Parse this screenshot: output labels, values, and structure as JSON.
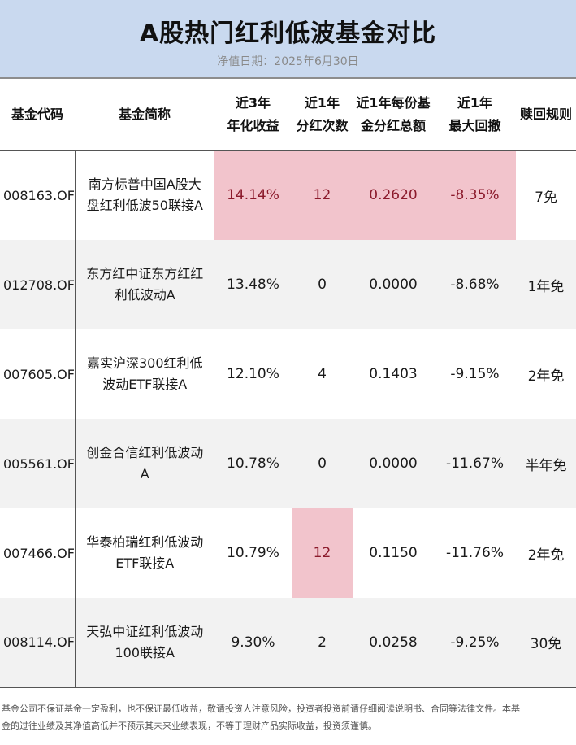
{
  "header": {
    "title": "A股热门红利低波基金对比",
    "subtitle": "净值日期：2025年6月30日"
  },
  "table": {
    "headers": [
      [
        "基金代码"
      ],
      [
        "基金简称"
      ],
      [
        "近3年",
        "年化收益"
      ],
      [
        "近1年",
        "分红次数"
      ],
      [
        "近1年每份基",
        "金分红总额"
      ],
      [
        "近1年",
        "最大回撤"
      ],
      [
        "赎回规则"
      ]
    ],
    "rows": [
      {
        "code": "008163.OF",
        "name": [
          "南方标普中国A股大",
          "盘红利低波50联接A"
        ],
        "ret": "14.14%",
        "div_count": "12",
        "div_total": "0.2620",
        "drawdown": "-8.35%",
        "redeem": "7免"
      },
      {
        "code": "012708.OF",
        "name": [
          "东方红中证东方红红",
          "利低波动A"
        ],
        "ret": "13.48%",
        "div_count": "0",
        "div_total": "0.0000",
        "drawdown": "-8.68%",
        "redeem": "1年免"
      },
      {
        "code": "007605.OF",
        "name": [
          "嘉实沪深300红利低",
          "波动ETF联接A"
        ],
        "ret": "12.10%",
        "div_count": "4",
        "div_total": "0.1403",
        "drawdown": "-9.15%",
        "redeem": "2年免"
      },
      {
        "code": "005561.OF",
        "name": [
          "创金合信红利低波动",
          "A"
        ],
        "ret": "10.78%",
        "div_count": "0",
        "div_total": "0.0000",
        "drawdown": "-11.67%",
        "redeem": "半年免"
      },
      {
        "code": "007466.OF",
        "name": [
          "华泰柏瑞红利低波动",
          "ETF联接A"
        ],
        "ret": "10.79%",
        "div_count": "12",
        "div_total": "0.1150",
        "drawdown": "-11.76%",
        "redeem": "2年免"
      },
      {
        "code": "008114.OF",
        "name": [
          "天弘中证红利低波动",
          "100联接A"
        ],
        "ret": "9.30%",
        "div_count": "2",
        "div_total": "0.0258",
        "drawdown": "-9.25%",
        "redeem": "30免"
      }
    ]
  },
  "footer": {
    "disclaimer_line1": "基金公司不保证基金一定盈利，也不保证最低收益，敬请投资人注意风险，投资者投资前请仔细阅读说明书、合同等法律文件。本基",
    "disclaimer_line2": "金的过往业绩及其净值高低并不预示其未来业绩表现，不等于理财产品实际收益，投资须谨慎。"
  },
  "colors": {
    "header_bg": "#c9d9ef",
    "highlight_bg": "#f2c4cc",
    "highlight_text": "#8b1a2b",
    "alt_row_bg": "#f2f2f2"
  }
}
